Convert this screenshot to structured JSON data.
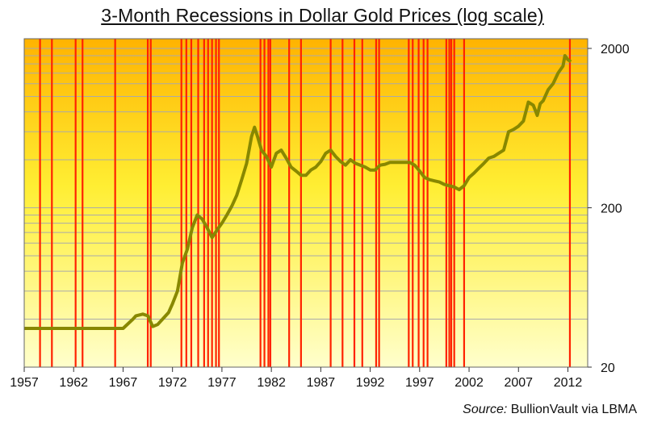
{
  "source": {
    "label": "Source:",
    "text": "BullionVault via LBMA"
  },
  "colors": {
    "background_top": "#ffb300",
    "background_mid": "#ffee33",
    "background_bottom": "#ffffcc",
    "recession_lines": "#ff2200",
    "gold_line": "#888800",
    "grid": "#aaaaaa"
  },
  "chart_data": {
    "type": "line",
    "title": "3-Month Recessions in Dollar Gold Prices (log scale)",
    "xlabel": "",
    "ylabel": "",
    "y_scale": "log",
    "xlim": [
      1957,
      2014
    ],
    "ylim": [
      20,
      2300
    ],
    "x_ticks": [
      1957,
      1962,
      1967,
      1972,
      1977,
      1982,
      1987,
      1992,
      1997,
      2002,
      2007,
      2012
    ],
    "y_ticks": [
      20,
      200,
      2000
    ],
    "grid": true,
    "legend": "none",
    "series": [
      {
        "x": [
          1957,
          1959,
          1961,
          1963,
          1965,
          1967,
          1968.0,
          1968.3,
          1969.0,
          1969.5,
          1970.0,
          1970.5,
          1971.0,
          1971.6,
          1972.0,
          1972.5,
          1973.0,
          1973.5,
          1974.0,
          1974.5,
          1975.0,
          1975.5,
          1976.0,
          1976.5,
          1977.0,
          1977.5,
          1978.0,
          1978.5,
          1979.0,
          1979.5,
          1980.0,
          1980.3,
          1980.6,
          1981.0,
          1981.5,
          1982.0,
          1982.5,
          1983.0,
          1983.5,
          1984.0,
          1984.5,
          1985.0,
          1985.5,
          1986.0,
          1986.5,
          1987.0,
          1987.5,
          1988.0,
          1988.5,
          1989.0,
          1989.5,
          1990.0,
          1990.5,
          1991.0,
          1991.5,
          1992.0,
          1992.5,
          1993.0,
          1993.5,
          1994.0,
          1995.0,
          1996.0,
          1996.5,
          1997.0,
          1997.5,
          1998.0,
          1998.5,
          1999.0,
          1999.5,
          2000.0,
          2000.5,
          2001.0,
          2001.5,
          2002.0,
          2002.5,
          2003.0,
          2003.5,
          2004.0,
          2004.5,
          2005.0,
          2005.5,
          2006.0,
          2006.5,
          2007.0,
          2007.5,
          2008.0,
          2008.5,
          2008.9,
          2009.2,
          2009.5,
          2010.0,
          2010.5,
          2011.0,
          2011.5,
          2011.7,
          2012.0,
          2012.3
        ],
        "values": [
          35,
          35,
          35,
          35,
          35,
          35,
          40,
          42,
          43,
          42,
          36,
          37,
          40,
          44,
          50,
          60,
          90,
          110,
          150,
          180,
          170,
          150,
          130,
          145,
          160,
          180,
          205,
          240,
          300,
          380,
          560,
          640,
          560,
          460,
          420,
          360,
          440,
          460,
          410,
          360,
          340,
          320,
          320,
          345,
          360,
          390,
          440,
          460,
          420,
          390,
          370,
          400,
          380,
          370,
          360,
          345,
          345,
          370,
          375,
          385,
          385,
          385,
          370,
          340,
          310,
          300,
          295,
          290,
          280,
          275,
          270,
          260,
          275,
          310,
          330,
          355,
          380,
          410,
          420,
          440,
          460,
          600,
          620,
          650,
          700,
          920,
          880,
          760,
          900,
          940,
          1100,
          1200,
          1400,
          1550,
          1800,
          1700,
          1650
        ]
      }
    ],
    "recession_years": [
      1958.6,
      1959.8,
      1962.2,
      1962.9,
      1966.2,
      1969.5,
      1969.8,
      1972.9,
      1973.4,
      1973.9,
      1974.6,
      1975.2,
      1975.6,
      1976.0,
      1976.4,
      1976.7,
      1980.9,
      1981.3,
      1981.7,
      1981.9,
      1983.8,
      1985.0,
      1988.0,
      1989.2,
      1990.4,
      1991.2,
      1992.6,
      1992.9,
      1995.9,
      1996.3,
      1996.9,
      1997.4,
      1997.8,
      1999.7,
      2000.0,
      2000.2,
      2000.5,
      2001.5,
      2012.2
    ]
  }
}
